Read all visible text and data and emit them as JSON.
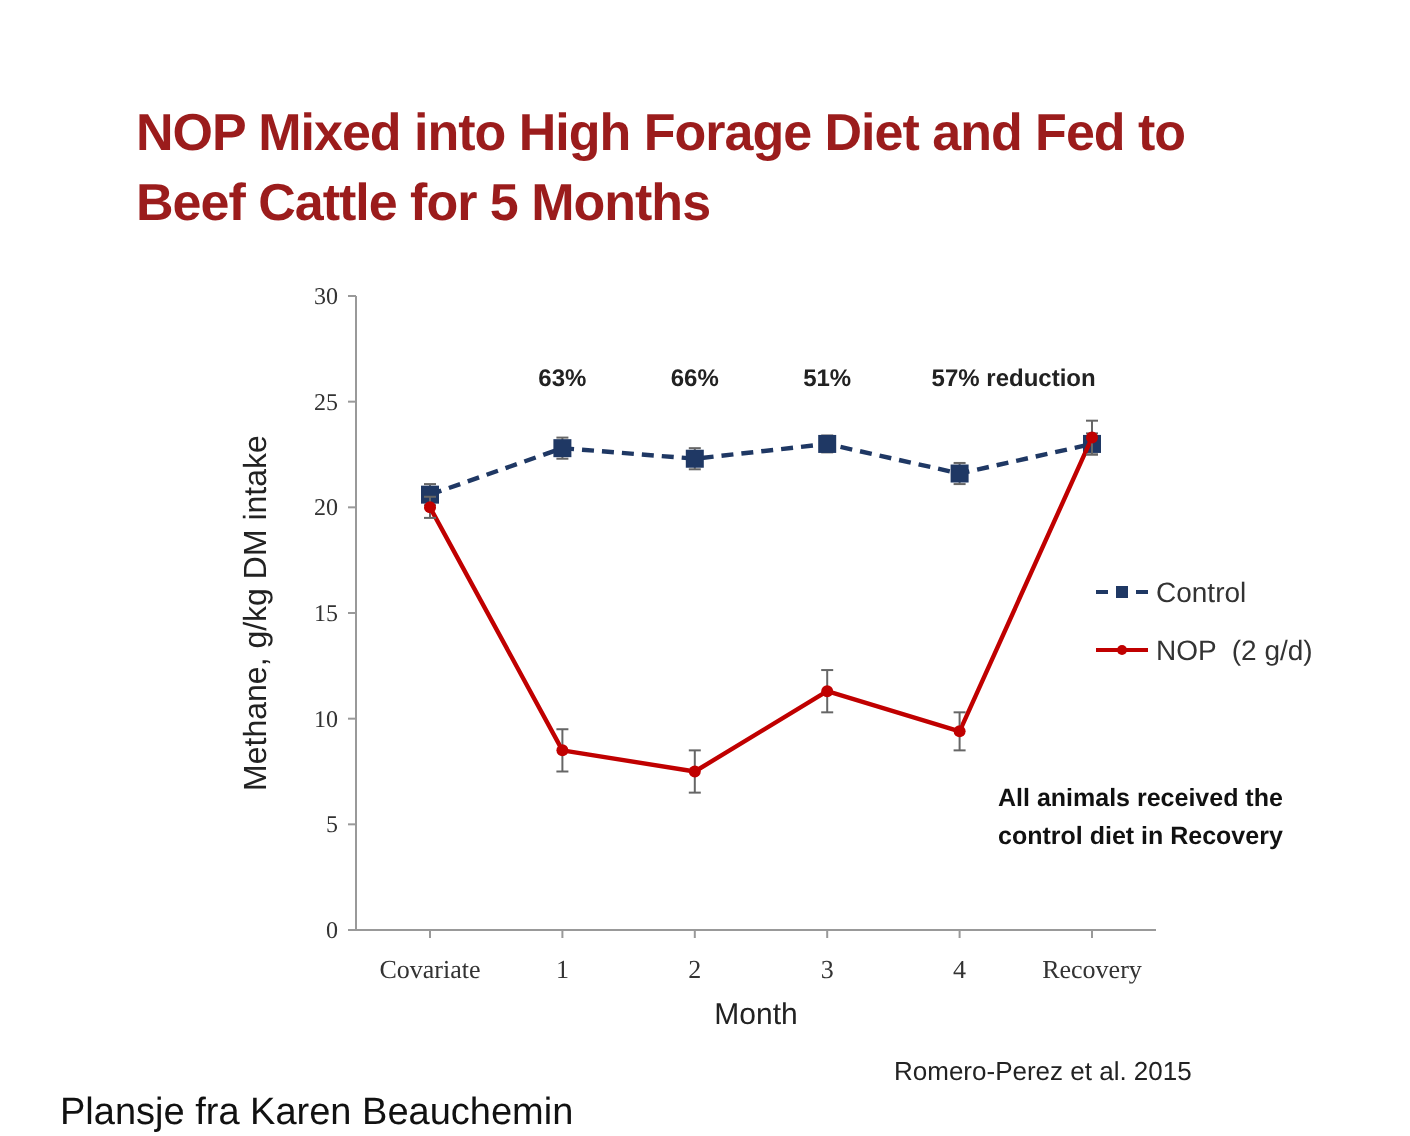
{
  "chart_data": {
    "type": "line",
    "title": "NOP Mixed into High Forage Diet and Fed to Beef Cattle for 5 Months",
    "xlabel": "Month",
    "ylabel": "Methane, g/kg DM intake",
    "categories": [
      "Covariate",
      "1",
      "2",
      "3",
      "4",
      "Recovery"
    ],
    "series": [
      {
        "name": "Control",
        "color": "#1f3864",
        "line_style": "dashed",
        "marker": "square",
        "values": [
          20.6,
          22.8,
          22.3,
          23.0,
          21.6,
          23.0
        ],
        "errors": [
          0.5,
          0.5,
          0.5,
          0.4,
          0.5,
          0.5
        ]
      },
      {
        "name": "NOP  (2 g/d)",
        "color": "#c00000",
        "line_style": "solid",
        "marker": "circle",
        "values": [
          20.0,
          8.5,
          7.5,
          11.3,
          9.4,
          23.3
        ],
        "errors": [
          0.5,
          1.0,
          1.0,
          1.0,
          0.9,
          0.8
        ]
      }
    ],
    "ylim": [
      0,
      30
    ],
    "yticks": [
      0,
      5,
      10,
      15,
      20,
      25,
      30
    ],
    "grid": false,
    "legend": "right",
    "annotations": [
      "63%",
      "66%",
      "51%",
      "57% reduction",
      "All animals received the control diet in Recovery",
      "Romero-Perez et al. 2015",
      "Plansje fra Karen Beauchemin"
    ]
  }
}
